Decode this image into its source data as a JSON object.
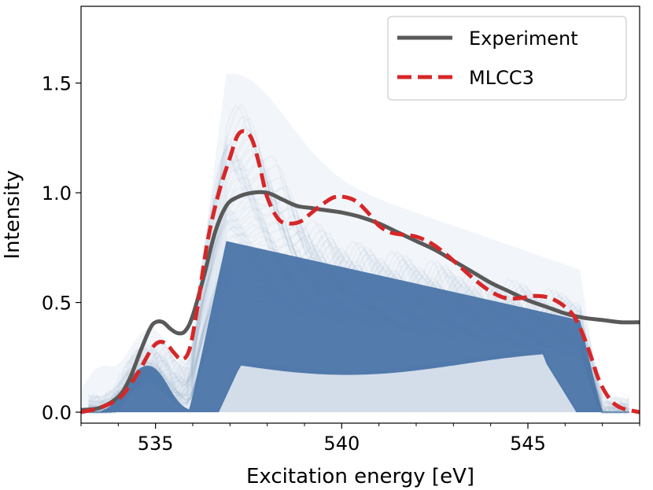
{
  "chart_data": {
    "type": "line",
    "xlabel": "Excitation energy [eV]",
    "ylabel": "Intensity",
    "xlim": [
      533,
      548
    ],
    "ylim": [
      -0.05,
      1.85
    ],
    "x_ticks": [
      535,
      540,
      545
    ],
    "y_ticks": [
      0.0,
      0.5,
      1.0,
      1.5
    ],
    "x_tick_labels": [
      "535",
      "540",
      "545"
    ],
    "y_tick_labels": [
      "0.0",
      "0.5",
      "1.0",
      "1.5"
    ],
    "grid": false,
    "legend_position": "top-right",
    "colors": {
      "experiment": "#595959",
      "mlcc3": "#d62728",
      "ensemble": "#4a74a8"
    },
    "series": [
      {
        "name": "Experiment",
        "style": "solid",
        "x": [
          533.0,
          533.5,
          534.0,
          534.3,
          534.6,
          534.85,
          535.0,
          535.2,
          535.4,
          535.6,
          535.8,
          536.0,
          536.3,
          536.6,
          536.9,
          537.2,
          537.6,
          538.0,
          538.4,
          538.8,
          539.2,
          539.6,
          540.0,
          540.5,
          541.0,
          541.5,
          542.0,
          542.5,
          543.0,
          543.5,
          544.0,
          544.5,
          545.0,
          545.5,
          546.0,
          546.5,
          547.0,
          547.5,
          548.0
        ],
        "values": [
          0.01,
          0.02,
          0.07,
          0.15,
          0.28,
          0.38,
          0.41,
          0.41,
          0.38,
          0.36,
          0.37,
          0.44,
          0.62,
          0.82,
          0.94,
          0.98,
          1.0,
          1.0,
          0.97,
          0.94,
          0.93,
          0.92,
          0.91,
          0.89,
          0.86,
          0.82,
          0.78,
          0.74,
          0.69,
          0.64,
          0.59,
          0.55,
          0.51,
          0.48,
          0.45,
          0.43,
          0.42,
          0.41,
          0.41
        ]
      },
      {
        "name": "MLCC3",
        "style": "dashed",
        "x": [
          533.0,
          533.5,
          534.0,
          534.3,
          534.6,
          534.9,
          535.1,
          535.3,
          535.5,
          535.7,
          535.9,
          536.1,
          536.4,
          536.7,
          537.0,
          537.2,
          537.4,
          537.6,
          537.8,
          538.0,
          538.3,
          538.6,
          538.9,
          539.2,
          539.5,
          539.8,
          540.1,
          540.4,
          540.7,
          541.0,
          541.3,
          541.6,
          542.0,
          542.4,
          542.8,
          543.2,
          543.6,
          544.0,
          544.4,
          544.8,
          545.2,
          545.6,
          546.0,
          546.3,
          546.6,
          546.9,
          547.2,
          547.5,
          548.0
        ],
        "values": [
          0.0,
          0.02,
          0.06,
          0.12,
          0.2,
          0.29,
          0.32,
          0.31,
          0.27,
          0.24,
          0.28,
          0.45,
          0.78,
          1.0,
          1.16,
          1.26,
          1.28,
          1.24,
          1.12,
          0.98,
          0.88,
          0.86,
          0.87,
          0.91,
          0.95,
          0.98,
          0.98,
          0.96,
          0.91,
          0.85,
          0.82,
          0.81,
          0.8,
          0.77,
          0.72,
          0.66,
          0.6,
          0.55,
          0.52,
          0.52,
          0.53,
          0.52,
          0.48,
          0.42,
          0.3,
          0.15,
          0.06,
          0.02,
          0.0
        ]
      }
    ]
  },
  "legend": {
    "items": [
      {
        "label": "Experiment"
      },
      {
        "label": "MLCC3"
      }
    ]
  }
}
